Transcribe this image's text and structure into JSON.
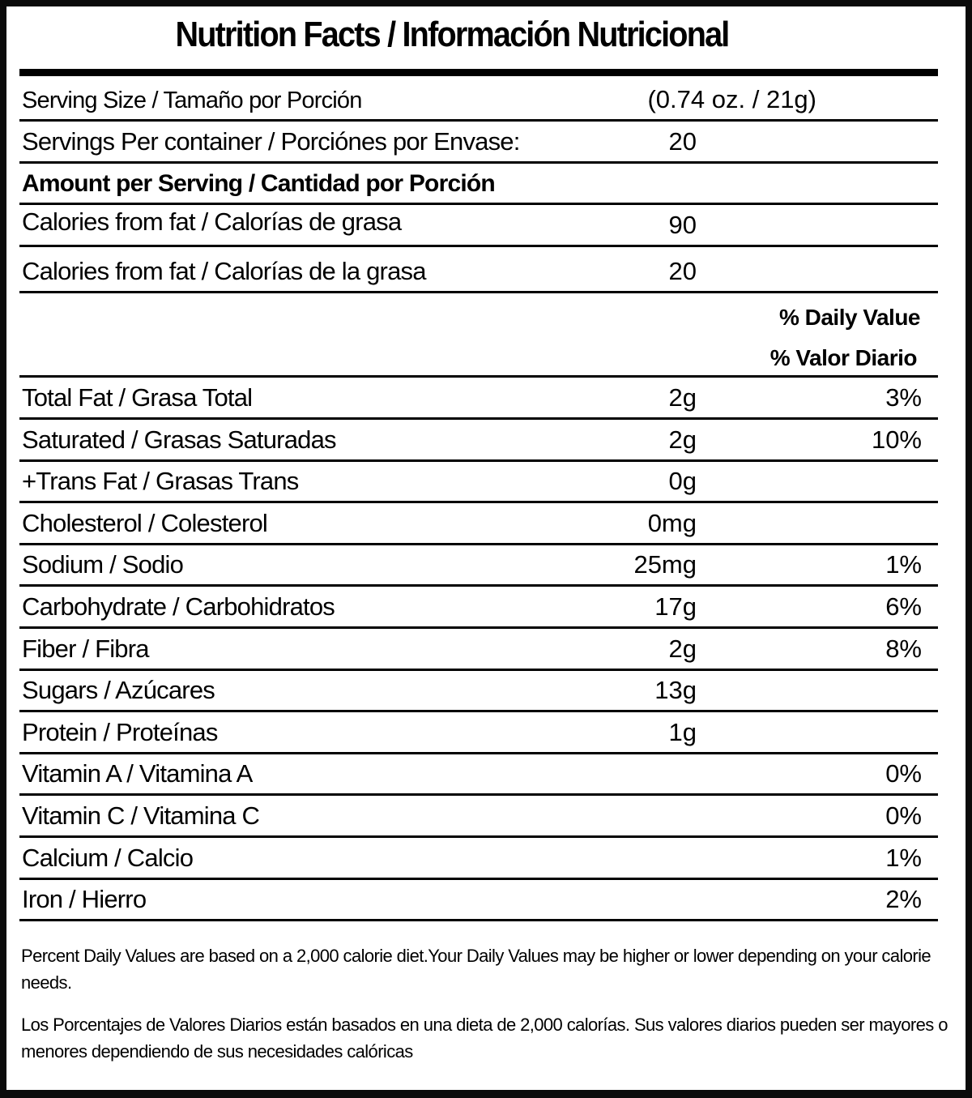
{
  "title": "Nutrition Facts / Información Nutricional",
  "serving_size": {
    "label": "Serving Size / Tamaño por Porción",
    "value": "(0.74 oz. / 21g)"
  },
  "servings_per_container": {
    "label": "Servings Per container / Porciónes por Envase:",
    "value": "20"
  },
  "amount_per_serving": "Amount per Serving / Cantidad por Porción",
  "calories": [
    {
      "label": "Calories from fat / Calorías de grasa",
      "value": "90"
    },
    {
      "label": "Calories from fat / Calorías de la grasa",
      "value": "20"
    }
  ],
  "daily_value_header": {
    "en": "% Daily Value",
    "es": "% Valor Diario"
  },
  "nutrients": [
    {
      "label": "Total Fat / Grasa Total",
      "amount": "2g",
      "dv": "3%"
    },
    {
      "label": "Saturated / Grasas Saturadas",
      "amount": "2g",
      "dv": "10%"
    },
    {
      "label": "+Trans Fat / Grasas Trans",
      "amount": "0g",
      "dv": ""
    },
    {
      "label": "Cholesterol / Colesterol",
      "amount": "0mg",
      "dv": ""
    },
    {
      "label": "Sodium / Sodio",
      "amount": "25mg",
      "dv": "1%"
    },
    {
      "label": "Carbohydrate / Carbohidratos",
      "amount": "17g",
      "dv": "6%"
    },
    {
      "label": "Fiber / Fibra",
      "amount": "2g",
      "dv": "8%"
    },
    {
      "label": "Sugars / Azúcares",
      "amount": "13g",
      "dv": ""
    },
    {
      "label": "Protein / Proteínas",
      "amount": "1g",
      "dv": ""
    },
    {
      "label": "Vitamin A / Vitamina A",
      "amount": "",
      "dv": "0%"
    },
    {
      "label": "Vitamin C / Vitamina C",
      "amount": "",
      "dv": "0%"
    },
    {
      "label": "Calcium / Calcio",
      "amount": "",
      "dv": "1%"
    },
    {
      "label": "Iron / Hierro",
      "amount": "",
      "dv": "2%"
    }
  ],
  "footnote_en": "Percent Daily Values are based on a 2,000 calorie diet.Your Daily Values may be higher or lower depending on your calorie needs.",
  "footnote_es": "Los Porcentajes de Valores Diarios están basados en una dieta de 2,000 calorías. Sus valores diarios pueden ser mayores o menores dependiendo de sus necesidades calóricas"
}
